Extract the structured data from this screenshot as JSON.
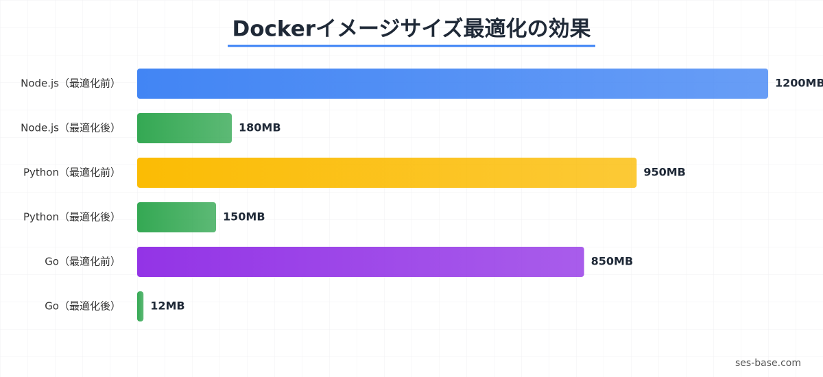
{
  "chart_data": {
    "type": "bar",
    "orientation": "horizontal",
    "title": "Dockerイメージサイズ最適化の効果",
    "categories": [
      "Node.js（最適化前）",
      "Node.js（最適化後）",
      "Python（最適化前）",
      "Python（最適化後）",
      "Go（最適化前）",
      "Go（最適化後）"
    ],
    "values": [
      1200,
      180,
      950,
      150,
      850,
      12
    ],
    "value_labels": [
      "1200MB",
      "180MB",
      "950MB",
      "150MB",
      "850MB",
      "12MB"
    ],
    "colors": [
      "#4285f4",
      "#34a853",
      "#fbbc04",
      "#34a853",
      "#9334e6",
      "#34a853"
    ],
    "source": "ses-base.com"
  }
}
